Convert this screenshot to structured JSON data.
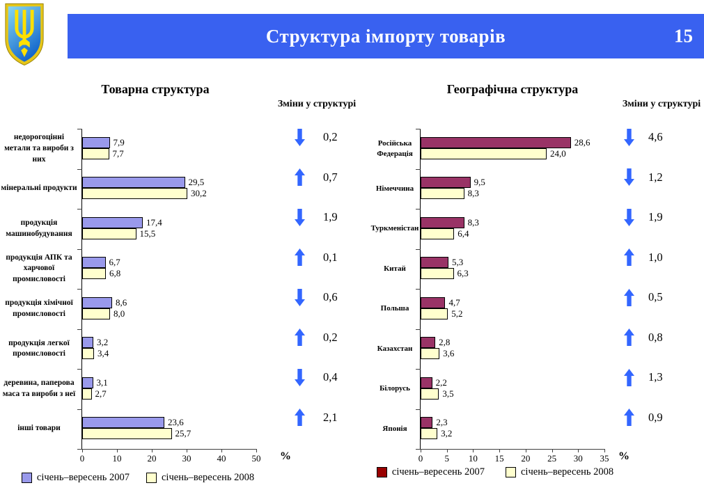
{
  "slide": {
    "title": "Структура імпорту товарів",
    "page_number": "15",
    "colors": {
      "header_bar": "#3961F0",
      "arrow": "#3366FF",
      "series_2007_commodity": "#9999EB",
      "series_2008": "#FFFFCE",
      "series_2007_geographic": "#993366",
      "legend_2007_geographic_swatch": "#990000"
    },
    "icons": {
      "emblem": "ukraine-coat-of-arms",
      "increase": "up-arrow",
      "decrease": "down-arrow"
    }
  },
  "chart_data": [
    {
      "id": "commodity",
      "type": "bar",
      "orientation": "horizontal",
      "title": "Товарна структура",
      "categories": [
        "недорогоцінні метали та вироби з них",
        "мінеральні продукти",
        "продукція машинобудування",
        "продукція АПК та харчової промисловості",
        "продукція хімічної промисловості",
        "продукція легкої промисловості",
        "деревина, паперова маса та вироби з неї",
        "інші товари"
      ],
      "series": [
        {
          "name": "січень–вересень 2007",
          "color": "#9999EB",
          "values": [
            7.9,
            29.5,
            17.4,
            6.7,
            8.6,
            3.2,
            3.1,
            23.6
          ]
        },
        {
          "name": "січень–вересень 2008",
          "color": "#FFFFCE",
          "values": [
            7.7,
            30.2,
            15.5,
            6.8,
            8.0,
            3.4,
            2.7,
            25.7
          ]
        }
      ],
      "xlim": [
        0,
        50
      ],
      "xticks": [
        0,
        10,
        20,
        30,
        40,
        50
      ],
      "x_unit": "%",
      "decimal_separator": ",",
      "grid": false,
      "legend_position": "bottom"
    },
    {
      "id": "geographic",
      "type": "bar",
      "orientation": "horizontal",
      "title": "Географічна структура",
      "categories": [
        "Російська Федерація",
        "Німеччина",
        "Туркменістан",
        "Китай",
        "Польша",
        "Казахстан",
        "Білорусь",
        "Японія"
      ],
      "series": [
        {
          "name": "січень–вересень 2007",
          "color": "#993366",
          "legend_color": "#990000",
          "values": [
            28.6,
            9.5,
            8.3,
            5.3,
            4.7,
            2.8,
            2.2,
            2.3
          ]
        },
        {
          "name": "січень–вересень 2008",
          "color": "#FFFFCE",
          "values": [
            24.0,
            8.3,
            6.4,
            6.3,
            5.2,
            3.6,
            3.5,
            3.2
          ]
        }
      ],
      "xlim": [
        0,
        35
      ],
      "xticks": [
        0,
        5,
        10,
        15,
        20,
        25,
        30,
        35
      ],
      "x_unit": "%",
      "decimal_separator": ",",
      "grid": false,
      "legend_position": "bottom"
    }
  ],
  "changes": [
    {
      "header": "Зміни у структурі",
      "items": [
        {
          "direction": "down",
          "value": 0.2
        },
        {
          "direction": "up",
          "value": 0.7
        },
        {
          "direction": "down",
          "value": 1.9
        },
        {
          "direction": "up",
          "value": 0.1
        },
        {
          "direction": "down",
          "value": 0.6
        },
        {
          "direction": "up",
          "value": 0.2
        },
        {
          "direction": "down",
          "value": 0.4
        },
        {
          "direction": "up",
          "value": 2.1
        }
      ]
    },
    {
      "header": "Зміни у структурі",
      "items": [
        {
          "direction": "down",
          "value": 4.6
        },
        {
          "direction": "down",
          "value": 1.2
        },
        {
          "direction": "down",
          "value": 1.9
        },
        {
          "direction": "up",
          "value": 1.0
        },
        {
          "direction": "up",
          "value": 0.5
        },
        {
          "direction": "up",
          "value": 0.8
        },
        {
          "direction": "up",
          "value": 1.3
        },
        {
          "direction": "up",
          "value": 0.9
        }
      ]
    }
  ]
}
